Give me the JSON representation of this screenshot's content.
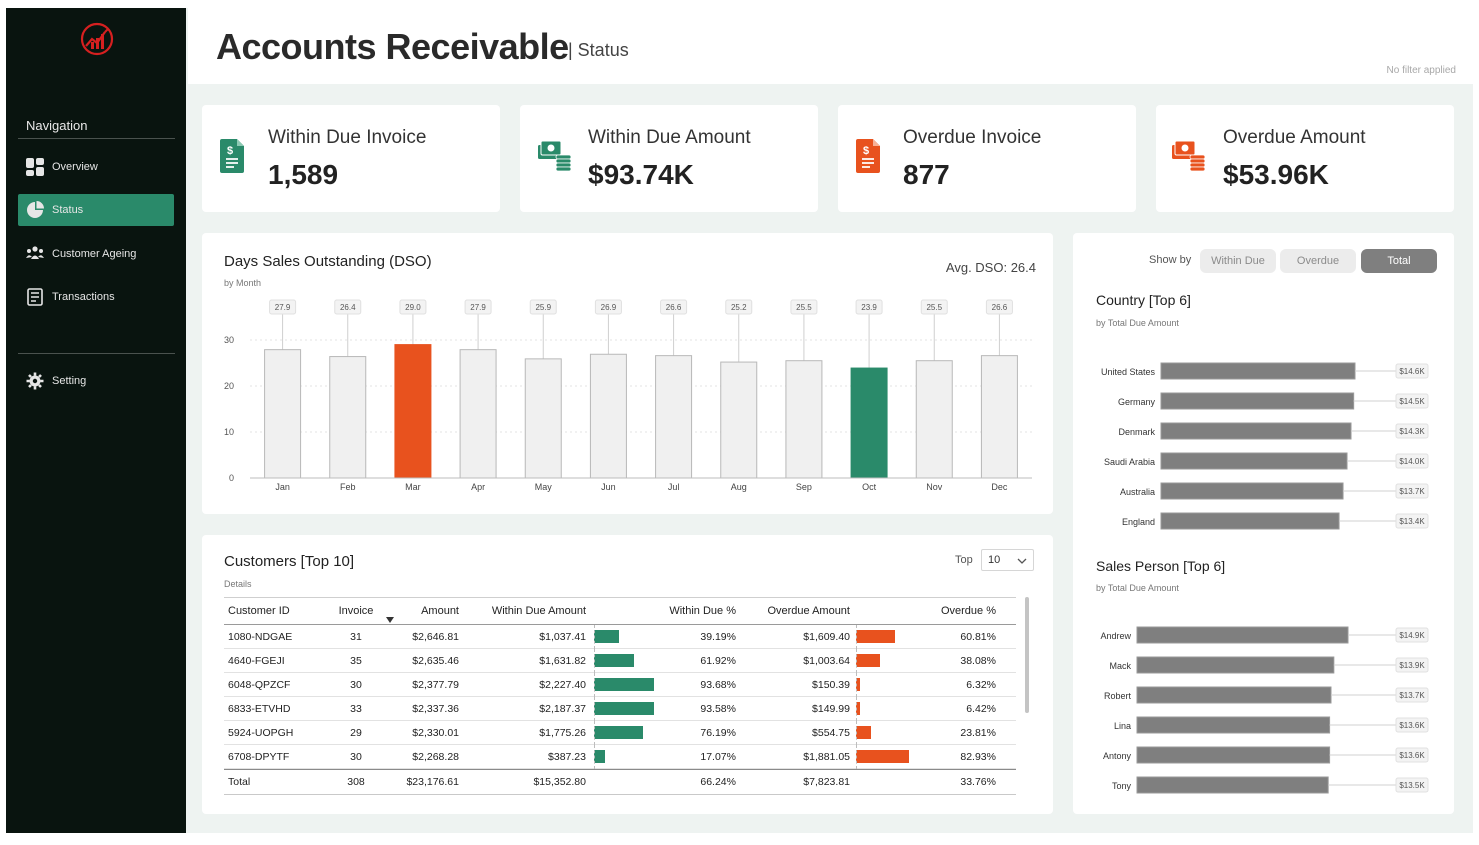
{
  "sidebar": {
    "heading": "Navigation",
    "items": [
      {
        "label": "Overview",
        "icon": "grid-icon"
      },
      {
        "label": "Status",
        "icon": "pie-icon"
      },
      {
        "label": "Customer Ageing",
        "icon": "people-icon"
      },
      {
        "label": "Transactions",
        "icon": "list-icon"
      }
    ],
    "setting_label": "Setting"
  },
  "header": {
    "title": "Accounts Receivable",
    "subtitle": "| Status",
    "filter_note": "No filter applied"
  },
  "kpis": [
    {
      "label": "Within Due Invoice",
      "value": "1,589",
      "icon": "invoice-icon",
      "color": "#2a8a6a"
    },
    {
      "label": "Within Due Amount",
      "value": "$93.74K",
      "icon": "cash-icon",
      "color": "#2a8a6a"
    },
    {
      "label": "Overdue Invoice",
      "value": "877",
      "icon": "invoice-icon",
      "color": "#e8521e"
    },
    {
      "label": "Overdue Amount",
      "value": "$53.96K",
      "icon": "cash-icon",
      "color": "#e8521e"
    }
  ],
  "dso": {
    "title": "Days Sales Outstanding (DSO)",
    "subtitle": "by Month",
    "avg_label": "Avg. DSO: 26.4"
  },
  "chart_data": [
    {
      "type": "bar",
      "title": "Days Sales Outstanding (DSO)",
      "categories": [
        "Jan",
        "Feb",
        "Mar",
        "Apr",
        "May",
        "Jun",
        "Jul",
        "Aug",
        "Sep",
        "Oct",
        "Nov",
        "Dec"
      ],
      "values": [
        27.9,
        26.4,
        29.0,
        27.9,
        25.9,
        26.9,
        26.6,
        25.2,
        25.5,
        23.9,
        25.5,
        26.6
      ],
      "value_labels": [
        "27.9",
        "26.4",
        "29.0",
        "27.9",
        "25.9",
        "26.9",
        "26.6",
        "25.2",
        "25.5",
        "23.9",
        "25.5",
        "26.6"
      ],
      "yticks": [
        0,
        10,
        20,
        30
      ],
      "ylim": [
        0,
        30
      ],
      "highlight": {
        "max": "Mar",
        "min": "Oct"
      },
      "colors": {
        "default": "#f0f0f0",
        "max": "#e8521e",
        "min": "#2a8a6a"
      }
    },
    {
      "type": "bar",
      "orientation": "horizontal",
      "title": "Country [Top 6]",
      "categories": [
        "United States",
        "Germany",
        "Denmark",
        "Saudi Arabia",
        "Australia",
        "England"
      ],
      "values": [
        14.6,
        14.5,
        14.3,
        14.0,
        13.7,
        13.4
      ],
      "value_labels": [
        "$14.6K",
        "$14.5K",
        "$14.3K",
        "$14.0K",
        "$13.7K",
        "$13.4K"
      ],
      "xlim": [
        0,
        14.6
      ]
    },
    {
      "type": "bar",
      "orientation": "horizontal",
      "title": "Sales Person [Top 6]",
      "categories": [
        "Andrew",
        "Mack",
        "Robert",
        "Lina",
        "Antony",
        "Tony"
      ],
      "values": [
        14.9,
        13.9,
        13.7,
        13.6,
        13.6,
        13.5
      ],
      "value_labels": [
        "$14.9K",
        "$13.9K",
        "$13.7K",
        "$13.6K",
        "$13.6K",
        "$13.5K"
      ],
      "xlim": [
        0,
        14.9
      ]
    }
  ],
  "showby": {
    "label": "Show by",
    "options": [
      "Within Due",
      "Overdue",
      "Total"
    ],
    "selected": "Total"
  },
  "country": {
    "title": "Country [Top 6]",
    "subtitle": "by Total Due Amount"
  },
  "salesperson": {
    "title": "Sales Person [Top 6]",
    "subtitle": "by Total Due Amount"
  },
  "customers": {
    "title": "Customers [Top 10]",
    "subtitle": "Details",
    "top_label": "Top",
    "top_value": "10",
    "columns": [
      "Customer ID",
      "Invoice",
      "Amount",
      "Within Due Amount",
      "Within Due %",
      "Overdue Amount",
      "Overdue %"
    ],
    "rows": [
      {
        "id": "1080-NDGAE",
        "invoice": "31",
        "amount": "$2,646.81",
        "within": "$1,037.41",
        "within_pct": "39.19%",
        "within_frac": 0.3919,
        "overdue": "$1,609.40",
        "overdue_pct": "60.81%",
        "overdue_frac": 0.6081
      },
      {
        "id": "4640-FGEJI",
        "invoice": "35",
        "amount": "$2,635.46",
        "within": "$1,631.82",
        "within_pct": "61.92%",
        "within_frac": 0.6192,
        "overdue": "$1,003.64",
        "overdue_pct": "38.08%",
        "overdue_frac": 0.3808
      },
      {
        "id": "6048-QPZCF",
        "invoice": "30",
        "amount": "$2,377.79",
        "within": "$2,227.40",
        "within_pct": "93.68%",
        "within_frac": 0.9368,
        "overdue": "$150.39",
        "overdue_pct": "6.32%",
        "overdue_frac": 0.0632
      },
      {
        "id": "6833-ETVHD",
        "invoice": "33",
        "amount": "$2,337.36",
        "within": "$2,187.37",
        "within_pct": "93.58%",
        "within_frac": 0.9358,
        "overdue": "$149.99",
        "overdue_pct": "6.42%",
        "overdue_frac": 0.0642
      },
      {
        "id": "5924-UOPGH",
        "invoice": "29",
        "amount": "$2,330.01",
        "within": "$1,775.26",
        "within_pct": "76.19%",
        "within_frac": 0.7619,
        "overdue": "$554.75",
        "overdue_pct": "23.81%",
        "overdue_frac": 0.2381
      },
      {
        "id": "6708-DPYTF",
        "invoice": "30",
        "amount": "$2,268.28",
        "within": "$387.23",
        "within_pct": "17.07%",
        "within_frac": 0.1707,
        "overdue": "$1,881.05",
        "overdue_pct": "82.93%",
        "overdue_frac": 0.8293
      }
    ],
    "total": {
      "label": "Total",
      "invoice": "308",
      "amount": "$23,176.61",
      "within": "$15,352.80",
      "within_pct": "66.24%",
      "overdue": "$7,823.81",
      "overdue_pct": "33.76%"
    }
  },
  "colors": {
    "green": "#2a8a6a",
    "orange": "#e8521e",
    "sidebar": "#09140f",
    "bar_gray": "#7f7f7f"
  }
}
